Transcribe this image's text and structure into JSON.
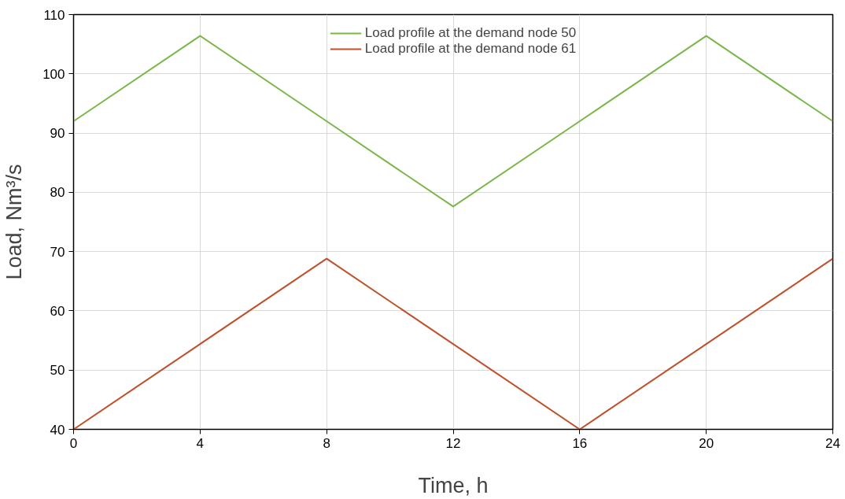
{
  "chart_data": {
    "type": "line",
    "xlabel": "Time, h",
    "ylabel": "Load, Nm³/s",
    "x": [
      0,
      4,
      8,
      12,
      16,
      20,
      24
    ],
    "series": [
      {
        "name": "Load profile at the demand node 50",
        "color": "#7ab648",
        "values": [
          92,
          106.4,
          92,
          77.6,
          92,
          106.4,
          92
        ]
      },
      {
        "name": "Load profile at the demand node 61",
        "color": "#c0502a",
        "values": [
          40,
          54.4,
          68.8,
          54.4,
          40,
          54.4,
          68.8
        ]
      }
    ],
    "xlim": [
      0,
      24
    ],
    "xticks": [
      0,
      4,
      8,
      12,
      16,
      20,
      24
    ],
    "ylim": [
      40,
      110
    ],
    "yticks": [
      40,
      50,
      60,
      70,
      80,
      90,
      100,
      110
    ],
    "grid": true,
    "legend": "top",
    "marker": "none",
    "line_style": "solid"
  }
}
